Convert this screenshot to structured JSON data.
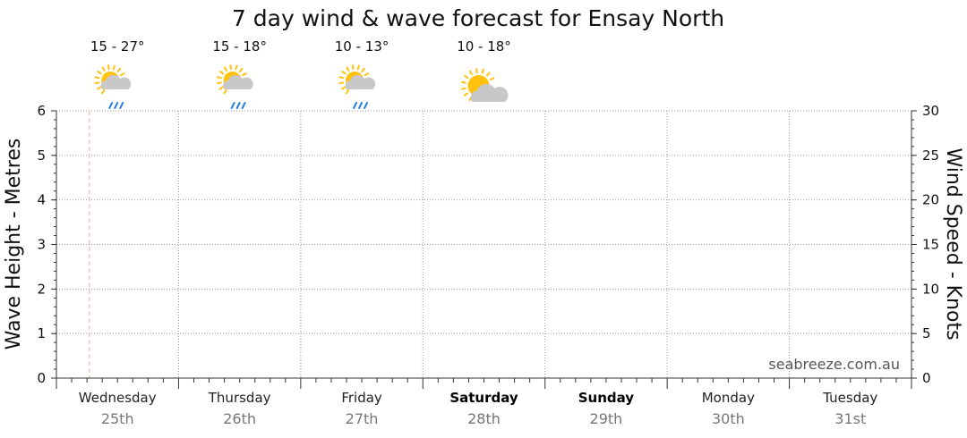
{
  "chart_data": {
    "type": "line",
    "title": "7 day wind & wave forecast for Ensay North",
    "y_left": {
      "label": "Wave Height - Metres",
      "range": [
        0,
        6
      ],
      "ticks": [
        0,
        1,
        2,
        3,
        4,
        5,
        6
      ]
    },
    "y_right": {
      "label": "Wind Speed - Knots",
      "range": [
        0,
        30
      ],
      "ticks": [
        0,
        5,
        10,
        15,
        20,
        25,
        30
      ]
    },
    "grid": true,
    "days": [
      {
        "name": "Wednesday",
        "date": "25th",
        "weekend": false,
        "temp": "15 - 27°",
        "icon": "sun-cloud-rain-icon"
      },
      {
        "name": "Thursday",
        "date": "26th",
        "weekend": false,
        "temp": "15 - 18°",
        "icon": "sun-cloud-rain-icon"
      },
      {
        "name": "Friday",
        "date": "27th",
        "weekend": false,
        "temp": "10 - 13°",
        "icon": "sun-cloud-rain-icon"
      },
      {
        "name": "Saturday",
        "date": "28th",
        "weekend": true,
        "temp": "10 - 18°",
        "icon": "sun-cloud-icon"
      },
      {
        "name": "Sunday",
        "date": "29th",
        "weekend": true,
        "temp": "",
        "icon": ""
      },
      {
        "name": "Monday",
        "date": "30th",
        "weekend": false,
        "temp": "",
        "icon": ""
      },
      {
        "name": "Tuesday",
        "date": "31st",
        "weekend": false,
        "temp": "",
        "icon": ""
      }
    ],
    "now_marker": "dashed-vertical-line",
    "series": []
  },
  "watermark": "seabreeze.com.au",
  "colors": {
    "sun": "#FFC20E",
    "cloud": "#c8c8c8",
    "rain": "#2a7de1",
    "grid": "#999999",
    "now_marker": "#f0a8a0"
  }
}
